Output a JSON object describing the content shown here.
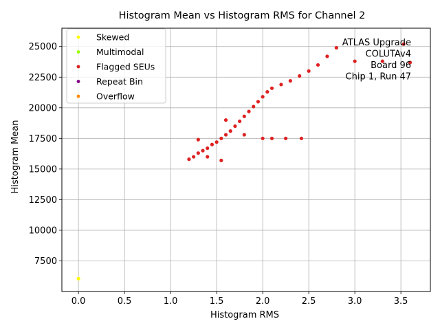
{
  "chart_data": {
    "type": "scatter",
    "title": "Histogram Mean vs Histogram RMS for Channel 2",
    "xlabel": "Histogram RMS",
    "ylabel": "Histogram Mean",
    "xlim": [
      -0.18,
      3.82
    ],
    "ylim": [
      5000,
      26500
    ],
    "xticks": [
      "0.0",
      "0.5",
      "1.0",
      "1.5",
      "2.0",
      "2.5",
      "3.0",
      "3.5"
    ],
    "xtick_values": [
      0,
      0.5,
      1.0,
      1.5,
      2.0,
      2.5,
      3.0,
      3.5
    ],
    "yticks": [
      "7500",
      "10000",
      "12500",
      "15000",
      "17500",
      "20000",
      "22500",
      "25000"
    ],
    "ytick_values": [
      7500,
      10000,
      12500,
      15000,
      17500,
      20000,
      22500,
      25000
    ],
    "grid": true,
    "legend_position": "top-left",
    "annotation": [
      "ATLAS Upgrade",
      "COLUTAv4",
      "Board 96",
      "Chip 1, Run 47"
    ],
    "series": [
      {
        "name": "Skewed",
        "color": "#ffff00",
        "points": [
          [
            0.0,
            6050
          ]
        ]
      },
      {
        "name": "Multimodal",
        "color": "#99ff00",
        "points": []
      },
      {
        "name": "Flagged SEUs",
        "color": "#dd2222",
        "points": [
          [
            1.2,
            15800
          ],
          [
            1.25,
            16000
          ],
          [
            1.3,
            16300
          ],
          [
            1.35,
            16500
          ],
          [
            1.4,
            16700
          ],
          [
            1.45,
            17000
          ],
          [
            1.5,
            17200
          ],
          [
            1.55,
            17500
          ],
          [
            1.6,
            17800
          ],
          [
            1.65,
            18100
          ],
          [
            1.7,
            18500
          ],
          [
            1.75,
            18900
          ],
          [
            1.8,
            19300
          ],
          [
            1.85,
            19700
          ],
          [
            1.9,
            20100
          ],
          [
            1.95,
            20500
          ],
          [
            2.0,
            20900
          ],
          [
            2.05,
            21300
          ],
          [
            2.1,
            21600
          ],
          [
            2.2,
            21900
          ],
          [
            2.3,
            22200
          ],
          [
            2.4,
            22600
          ],
          [
            2.5,
            23000
          ],
          [
            2.6,
            23500
          ],
          [
            2.7,
            24200
          ],
          [
            2.8,
            24900
          ],
          [
            3.0,
            23800
          ],
          [
            3.3,
            23800
          ],
          [
            3.6,
            23700
          ],
          [
            3.53,
            25200
          ],
          [
            2.0,
            17500
          ],
          [
            2.1,
            17500
          ],
          [
            2.25,
            17500
          ],
          [
            2.42,
            17500
          ],
          [
            1.3,
            17400
          ],
          [
            1.4,
            16000
          ],
          [
            1.55,
            15700
          ],
          [
            1.6,
            19000
          ],
          [
            1.8,
            17800
          ]
        ]
      },
      {
        "name": "Repeat Bin",
        "color": "#800080",
        "points": []
      },
      {
        "name": "Overflow",
        "color": "#ff8800",
        "points": []
      }
    ]
  }
}
